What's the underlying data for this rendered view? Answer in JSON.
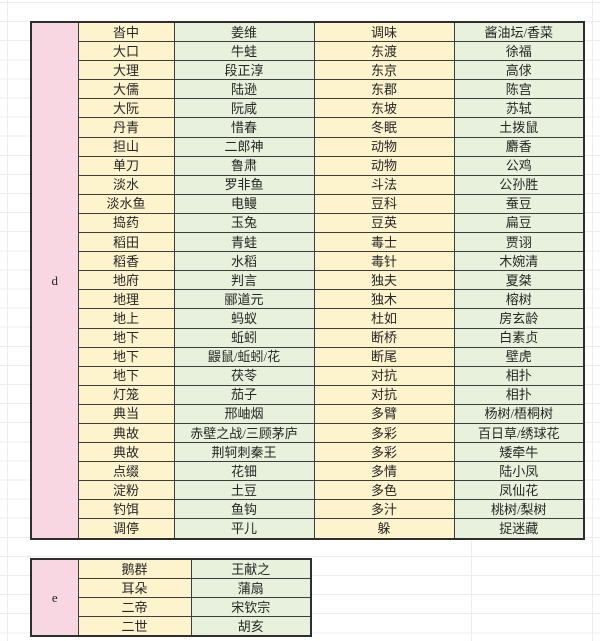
{
  "colors": {
    "letter_column_pink": "#f8d6e2",
    "cell_yellow": "#fdf3cd",
    "cell_green": "#e8f1dc",
    "table_border": "#3d3d3d",
    "background_gridline": "#ededed"
  },
  "tables": [
    {
      "letter": "d",
      "rows": [
        [
          "沓中",
          "姜维",
          "调味",
          "酱油坛/香菜"
        ],
        [
          "大口",
          "牛蛙",
          "东渡",
          "徐福"
        ],
        [
          "大理",
          "段正淳",
          "东京",
          "高俅"
        ],
        [
          "大儒",
          "陆逊",
          "东郡",
          "陈宫"
        ],
        [
          "大阮",
          "阮咸",
          "东坡",
          "苏轼"
        ],
        [
          "丹青",
          "惜春",
          "冬眠",
          "土拨鼠"
        ],
        [
          "担山",
          "二郎神",
          "动物",
          "麝香"
        ],
        [
          "单刀",
          "鲁肃",
          "动物",
          "公鸡"
        ],
        [
          "淡水",
          "罗非鱼",
          "斗法",
          "公孙胜"
        ],
        [
          "淡水鱼",
          "电鳗",
          "豆科",
          "蚕豆"
        ],
        [
          "捣药",
          "玉兔",
          "豆英",
          "扁豆"
        ],
        [
          "稻田",
          "青蛙",
          "毒士",
          "贾诩"
        ],
        [
          "稻香",
          "水稻",
          "毒针",
          "木婉清"
        ],
        [
          "地府",
          "判言",
          "独夫",
          "夏桀"
        ],
        [
          "地理",
          "郦道元",
          "独木",
          "榕树"
        ],
        [
          "地上",
          "蚂蚁",
          "杜如",
          "房玄龄"
        ],
        [
          "地下",
          "蚯蚓",
          "断桥",
          "白素贞"
        ],
        [
          "地下",
          "鼹鼠/蚯蚓/花",
          "断尾",
          "壁虎"
        ],
        [
          "地下",
          "茯苓",
          "对抗",
          "相扑"
        ],
        [
          "灯笼",
          "茄子",
          "对抗",
          "相扑"
        ],
        [
          "典当",
          "邢岫烟",
          "多臂",
          "杨树/梧桐树"
        ],
        [
          "典故",
          "赤壁之战/三顾茅庐",
          "多彩",
          "百日草/绣球花"
        ],
        [
          "典故",
          "荆轲刺秦王",
          "多彩",
          "矮牵牛"
        ],
        [
          "点缀",
          "花钿",
          "多情",
          "陆小凤"
        ],
        [
          "淀粉",
          "土豆",
          "多色",
          "凤仙花"
        ],
        [
          "钓饵",
          "鱼钩",
          "多汁",
          "桃树/梨树"
        ],
        [
          "调停",
          "平儿",
          "躲",
          "捉迷藏"
        ]
      ]
    },
    {
      "letter": "e",
      "rows": [
        [
          "鹅群",
          "王献之"
        ],
        [
          "耳朵",
          "蒲扇"
        ],
        [
          "二帝",
          "宋钦宗"
        ],
        [
          "二世",
          "胡亥"
        ]
      ]
    }
  ]
}
